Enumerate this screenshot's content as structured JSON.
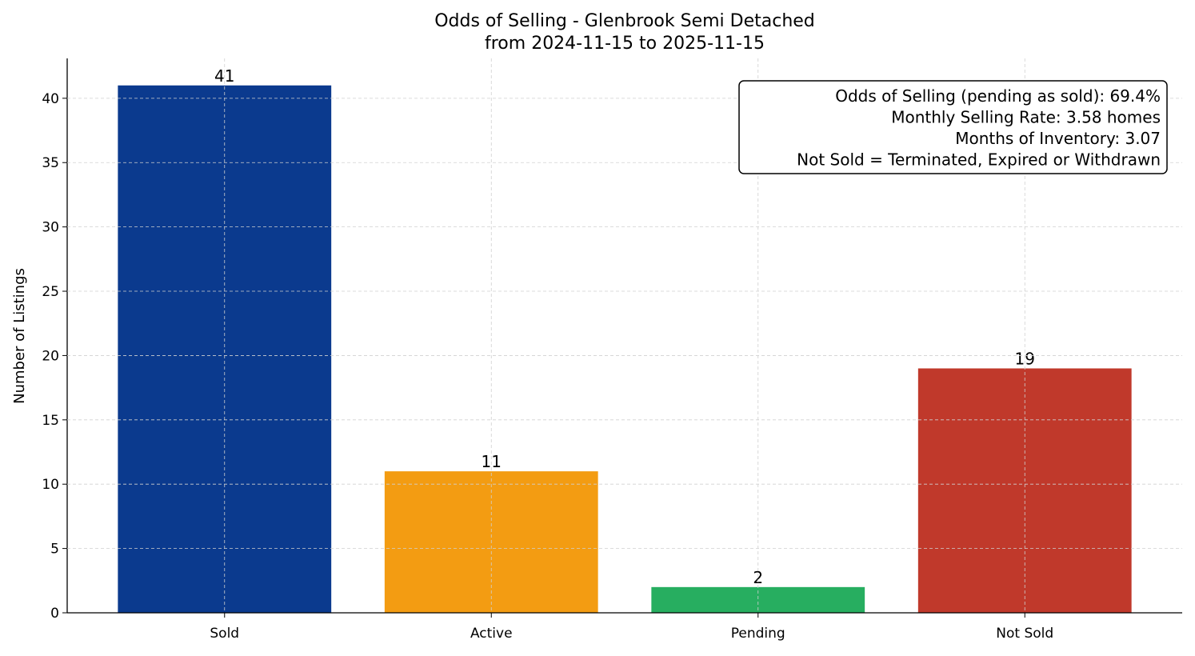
{
  "chart_data": {
    "type": "bar",
    "title": "Odds of Selling - Glenbrook Semi Detached",
    "subtitle": "from 2024-11-15 to 2025-11-15",
    "xlabel": "",
    "ylabel": "Number of Listings",
    "categories": [
      "Sold",
      "Active",
      "Pending",
      "Not Sold"
    ],
    "values": [
      41,
      11,
      2,
      19
    ],
    "data_labels": [
      "41",
      "11",
      "2",
      "19"
    ],
    "colors": [
      "#0b3a8e",
      "#f39c12",
      "#27ae60",
      "#c0392b"
    ],
    "ylim": [
      0,
      43.1
    ],
    "yticks": [
      0,
      5,
      10,
      15,
      20,
      25,
      30,
      35,
      40
    ],
    "grid": true,
    "annotation": {
      "placement": "top-right",
      "lines": [
        "Odds of Selling (pending as sold): 69.4%",
        "Monthly Selling Rate: 3.58 homes",
        "Months of Inventory: 3.07",
        "Not Sold = Terminated, Expired or Withdrawn"
      ]
    }
  }
}
